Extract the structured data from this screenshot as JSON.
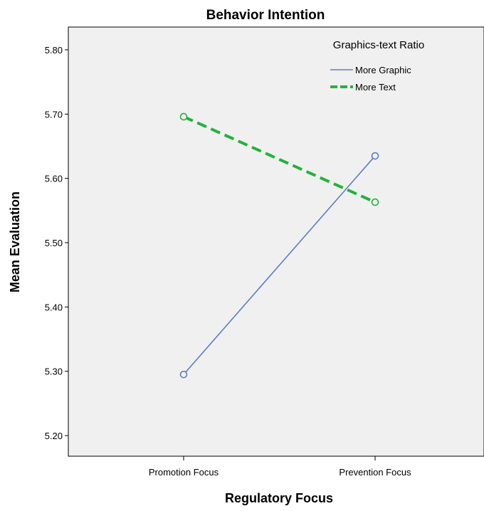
{
  "chart_data": {
    "type": "line",
    "title": "Behavior Intention",
    "xlabel": "Regulatory Focus",
    "ylabel": "Mean Evaluation",
    "categories": [
      "Promotion Focus",
      "Prevention Focus"
    ],
    "ylim": [
      5.18,
      5.83
    ],
    "yticks": [
      5.2,
      5.3,
      5.4,
      5.5,
      5.6,
      5.7,
      5.8
    ],
    "ytick_labels": [
      "5.20",
      "5.30",
      "5.40",
      "5.50",
      "5.60",
      "5.70",
      "5.80"
    ],
    "grid": false,
    "legend": {
      "title": "Graphics-text Ratio",
      "placement": "top-right"
    },
    "series": [
      {
        "name": "More Graphic",
        "values": [
          5.295,
          5.635
        ],
        "color": "#5b7fc4",
        "style": "solid"
      },
      {
        "name": "More Text",
        "values": [
          5.696,
          5.563
        ],
        "color": "#22b33a",
        "style": "dashed"
      }
    ],
    "colors": {
      "plot_background": "#f0f0f0",
      "axis": "#000000"
    }
  }
}
